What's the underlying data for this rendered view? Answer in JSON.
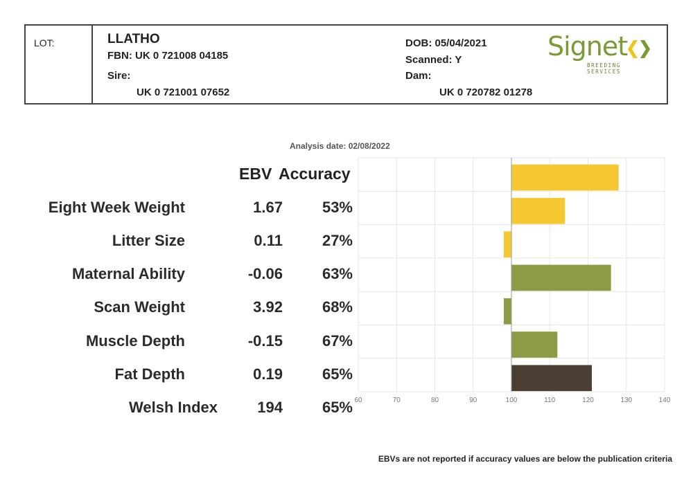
{
  "header": {
    "lot_label": "LOT:",
    "name": "LLATHO",
    "fbn": "FBN: UK 0 721008 04185",
    "sire_label": "Sire:",
    "sire": "UK 0 721001 07652",
    "dob": "DOB: 05/04/2021",
    "scanned": "Scanned: Y",
    "dam_label": "Dam:",
    "dam": "UK 0 720782 01278"
  },
  "logo": {
    "word": "Signet",
    "subtitle": "BREEDING SERVICES",
    "colors": {
      "green": "#7a9a36",
      "yellow": "#f3c31c"
    }
  },
  "analysis_date": "Analysis date: 02/08/2022",
  "columns": {
    "ebv": "EBV",
    "accuracy": "Accuracy"
  },
  "traits": [
    {
      "name": "Eight Week Weight",
      "ebv": "1.67",
      "accuracy": "53%"
    },
    {
      "name": "Litter Size",
      "ebv": "0.11",
      "accuracy": "27%"
    },
    {
      "name": "Maternal Ability",
      "ebv": "-0.06",
      "accuracy": "63%"
    },
    {
      "name": "Scan Weight",
      "ebv": "3.92",
      "accuracy": "68%"
    },
    {
      "name": "Muscle Depth",
      "ebv": "-0.15",
      "accuracy": "67%"
    },
    {
      "name": "Fat Depth",
      "ebv": "0.19",
      "accuracy": "65%"
    },
    {
      "name": "Welsh Index",
      "ebv": "194",
      "accuracy": "65%"
    }
  ],
  "chart_data": {
    "type": "bar",
    "orientation": "horizontal",
    "categories": [
      "Eight Week Weight",
      "Litter Size",
      "Maternal Ability",
      "Scan Weight",
      "Muscle Depth",
      "Fat Depth",
      "Welsh Index"
    ],
    "values": [
      128,
      114,
      98,
      126,
      98,
      112,
      121
    ],
    "baseline": 100,
    "xlim": [
      60,
      140
    ],
    "xticks": [
      60,
      70,
      80,
      90,
      100,
      110,
      120,
      130,
      140
    ],
    "grid": true,
    "colors": [
      "#f5c832",
      "#f5c832",
      "#f5c832",
      "#8c9b44",
      "#8c9b44",
      "#8c9b44",
      "#4b3f33"
    ]
  },
  "footnote": "EBVs are not reported if accuracy values are below the publication criteria"
}
